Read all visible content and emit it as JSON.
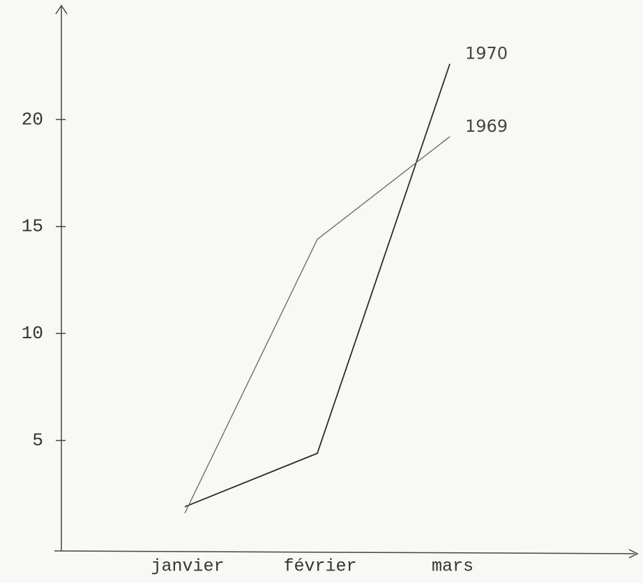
{
  "chart_data": {
    "type": "line",
    "categories": [
      "janvier",
      "février",
      "mars"
    ],
    "series": [
      {
        "name": "1970",
        "color": "#2b2b2b",
        "values": [
          1.9,
          4.4,
          22.6
        ]
      },
      {
        "name": "1969",
        "color": "#6e6e6e",
        "values": [
          1.6,
          14.4,
          19.2
        ]
      }
    ],
    "ylim": [
      0,
      25
    ],
    "yticks": [
      5,
      10,
      15,
      20
    ]
  }
}
